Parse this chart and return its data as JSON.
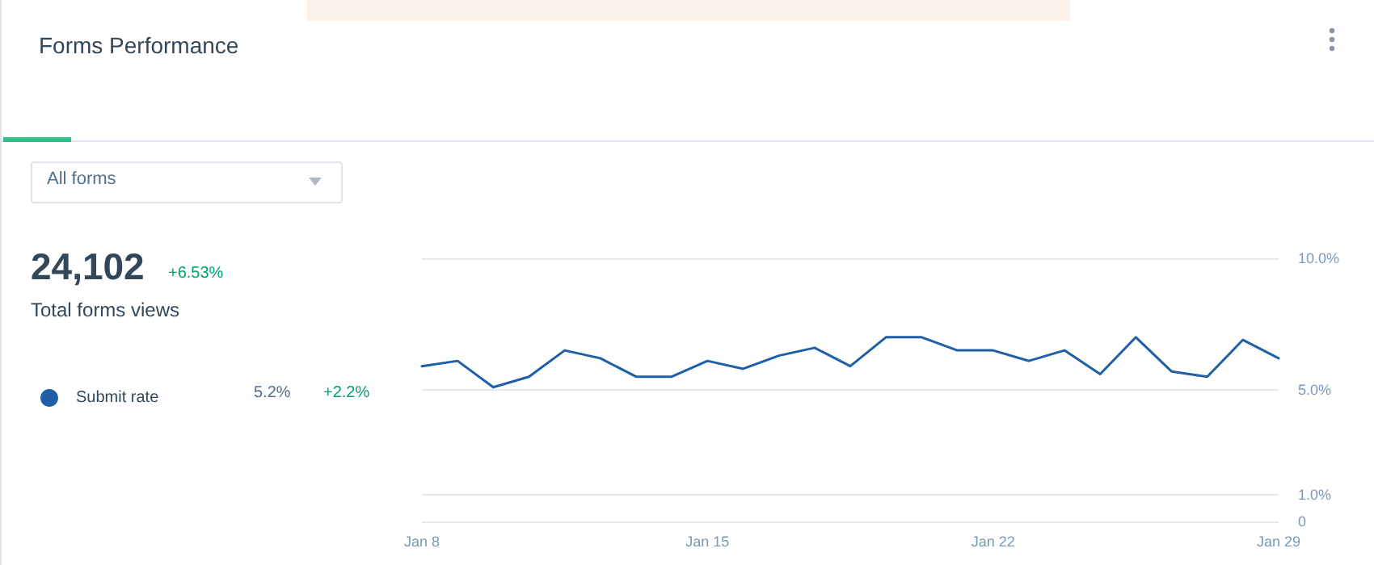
{
  "chart_data": {
    "type": "line",
    "title": "Forms Performance",
    "categories": [
      "Jan 8",
      null,
      null,
      null,
      null,
      null,
      null,
      null,
      "Jan 15",
      null,
      null,
      null,
      null,
      null,
      null,
      null,
      "Jan 22",
      null,
      null,
      null,
      null,
      null,
      null,
      null,
      "Jan 29"
    ],
    "series": [
      {
        "name": "Submit rate",
        "color": "#1f5fa8",
        "values": [
          5.9,
          6.1,
          5.1,
          5.5,
          6.5,
          6.2,
          5.5,
          5.5,
          6.1,
          5.8,
          6.3,
          6.6,
          5.9,
          7.0,
          7.0,
          6.5,
          6.5,
          6.1,
          6.5,
          5.6,
          7.0,
          5.7,
          5.5,
          6.9,
          6.2
        ]
      }
    ],
    "ylim": [
      0,
      10
    ],
    "yticks": [
      0,
      {
        "value": 1,
        "label": "1.0%"
      },
      {
        "value": 5,
        "label": "5.0%"
      },
      {
        "value": 10,
        "label": "10.0%"
      }
    ],
    "grid": "y",
    "legend": "left",
    "marker": "none",
    "line_style": "solid",
    "annotations": [
      "All forms",
      "24,102",
      "+6.53%",
      "Total forms views",
      "5.2%",
      "+2.2%"
    ]
  }
}
